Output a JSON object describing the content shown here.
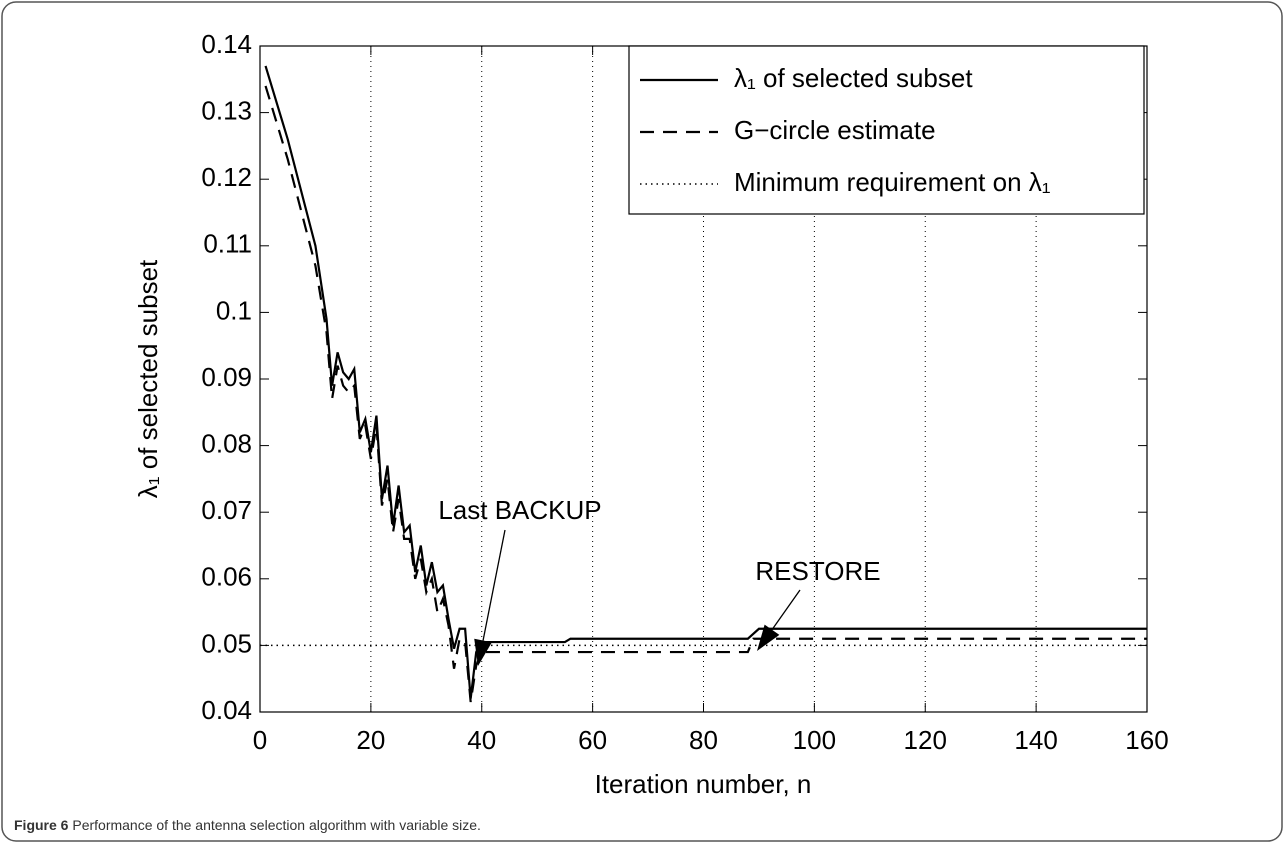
{
  "chart_data": {
    "type": "line",
    "caption_label": "Figure 6",
    "caption": "Performance of the antenna selection algorithm with variable size.",
    "xlabel": "Iteration number, n",
    "ylabel": "λ₁ of selected subset",
    "xlim": [
      0,
      160
    ],
    "xticks": [
      0,
      20,
      40,
      60,
      80,
      100,
      120,
      140,
      160
    ],
    "ylim": [
      0.04,
      0.14
    ],
    "yticks": [
      0.04,
      0.05,
      0.06,
      0.07,
      0.08,
      0.09,
      0.1,
      0.11,
      0.12,
      0.13,
      0.14
    ],
    "grid": "x",
    "legend": "upper right",
    "annotations": [
      {
        "text": "Last BACKUP"
      },
      {
        "text": "RESTORE"
      }
    ],
    "series": [
      {
        "name": "λ₁ of selected subset",
        "color": "#000000",
        "style": "solid",
        "x": [
          1,
          5,
          10,
          12,
          13,
          14,
          15,
          16,
          17,
          18,
          19,
          20,
          21,
          22,
          23,
          24,
          25,
          26,
          27,
          28,
          29,
          30,
          31,
          32,
          33,
          34,
          35,
          36,
          37,
          38,
          39,
          40,
          55,
          56,
          88,
          90,
          160
        ],
        "values": [
          0.137,
          0.126,
          0.11,
          0.099,
          0.089,
          0.094,
          0.091,
          0.09,
          0.0915,
          0.082,
          0.084,
          0.079,
          0.0845,
          0.072,
          0.077,
          0.068,
          0.074,
          0.067,
          0.068,
          0.061,
          0.065,
          0.059,
          0.0625,
          0.058,
          0.059,
          0.054,
          0.0495,
          0.0525,
          0.0525,
          0.042,
          0.049,
          0.0505,
          0.0505,
          0.051,
          0.051,
          0.0525,
          0.0525
        ]
      },
      {
        "name": "G−circle estimate",
        "color": "#000000",
        "style": "dashed",
        "x": [
          1,
          5,
          10,
          12,
          13,
          14,
          15,
          16,
          17,
          18,
          19,
          20,
          21,
          22,
          23,
          24,
          25,
          26,
          27,
          28,
          29,
          30,
          31,
          32,
          33,
          34,
          35,
          36,
          37,
          38,
          39,
          40,
          88,
          89,
          160
        ],
        "values": [
          0.134,
          0.123,
          0.107,
          0.097,
          0.087,
          0.092,
          0.089,
          0.088,
          0.089,
          0.081,
          0.083,
          0.078,
          0.083,
          0.071,
          0.075,
          0.067,
          0.072,
          0.066,
          0.066,
          0.06,
          0.063,
          0.058,
          0.06,
          0.055,
          0.057,
          0.053,
          0.0465,
          0.051,
          0.0505,
          0.0415,
          0.047,
          0.049,
          0.049,
          0.051,
          0.051
        ]
      },
      {
        "name": "Minimum requirement on λ₁",
        "color": "#000000",
        "style": "dotted",
        "x": [
          0,
          160
        ],
        "values": [
          0.05,
          0.05
        ]
      }
    ]
  }
}
